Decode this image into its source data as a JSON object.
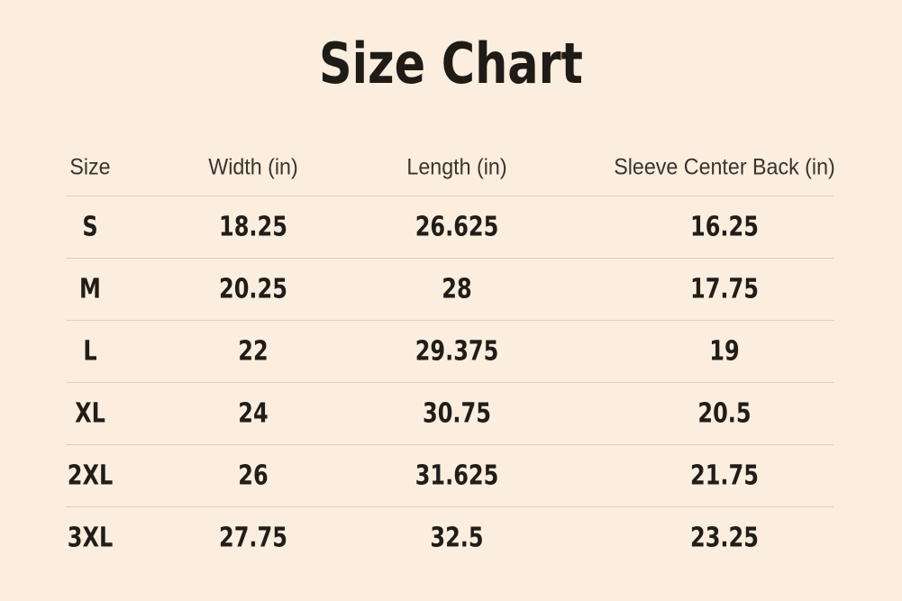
{
  "page": {
    "title": "Size Chart"
  },
  "table": {
    "columns": [
      "Size",
      "Width (in)",
      "Length (in)",
      "Sleeve Center Back (in)"
    ],
    "rows": [
      {
        "cells": [
          "S",
          "18.25",
          "26.625",
          "16.25"
        ]
      },
      {
        "cells": [
          "M",
          "20.25",
          "28",
          "17.75"
        ]
      },
      {
        "cells": [
          "L",
          "22",
          "29.375",
          "19"
        ]
      },
      {
        "cells": [
          "XL",
          "24",
          "30.75",
          "20.5"
        ]
      },
      {
        "cells": [
          "2XL",
          "26",
          "31.625",
          "21.75"
        ]
      },
      {
        "cells": [
          "3XL",
          "27.75",
          "32.5",
          "23.25"
        ]
      }
    ]
  },
  "colors": {
    "background": "#fbeede",
    "title_text": "#1f1b17",
    "header_text": "#38342e",
    "data_text": "#211d19",
    "divider": "#d8d1c5"
  }
}
